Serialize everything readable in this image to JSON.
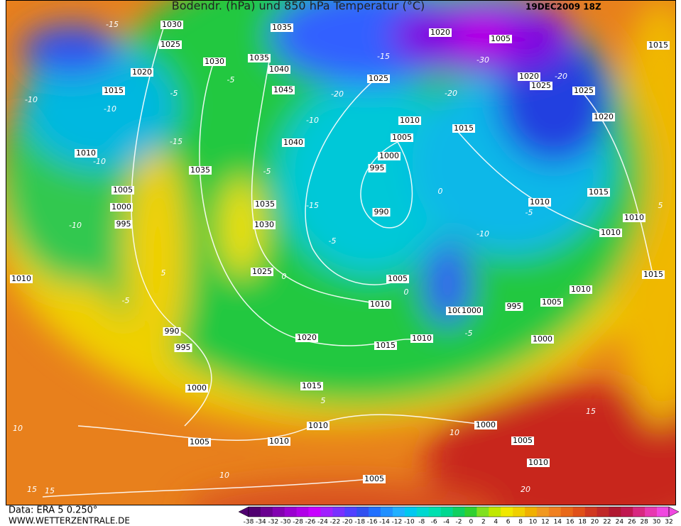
{
  "header": {
    "title": "Bodendr. (hPa) und 850 hPa Temperatur (°C)",
    "date": "19DEC2009 18Z"
  },
  "map": {
    "isobar_labels": [
      "1030",
      "1035",
      "1025",
      "1035",
      "1030",
      "1020",
      "1040",
      "1015",
      "1045",
      "1025",
      "1020",
      "1005",
      "1020",
      "1025",
      "1025",
      "1015",
      "1020",
      "1010",
      "1005",
      "1015",
      "1040",
      "1000",
      "1010",
      "1035",
      "995",
      "1005",
      "1015",
      "1000",
      "1035",
      "990",
      "1010",
      "995",
      "1030",
      "1010",
      "1010",
      "1010",
      "1025",
      "1005",
      "1015",
      "1010",
      "1010",
      "1005",
      "1000",
      "995",
      "1005",
      "990",
      "1020",
      "1010",
      "1000",
      "995",
      "1015",
      "1000",
      "1015",
      "1010",
      "1000",
      "1005",
      "1010",
      "1005",
      "1010",
      "1005"
    ],
    "temperature_labels": [
      "-15",
      "-10",
      "-5",
      "-10",
      "-5",
      "-20",
      "-20",
      "-15",
      "-10",
      "-5",
      "-15",
      "-10",
      "-10",
      "-5",
      "0",
      "-10",
      "-5",
      "5",
      "0",
      "-5",
      "0",
      "-5",
      "5",
      "10",
      "15",
      "10",
      "15",
      "10",
      "15",
      "20",
      "5",
      "-30",
      "-15",
      "-20"
    ]
  },
  "footer": {
    "data_source": "Data: ERA 5 0.250°",
    "website": "WWW.WETTERZENTRALE.DE"
  },
  "colorbar": {
    "labels": [
      "-38",
      "-34",
      "-32",
      "-30",
      "-28",
      "-26",
      "-24",
      "-22",
      "-20",
      "-18",
      "-16",
      "-14",
      "-12",
      "-10",
      "-8",
      "-6",
      "-4",
      "-2",
      "0",
      "2",
      "4",
      "6",
      "8",
      "10",
      "12",
      "14",
      "16",
      "18",
      "20",
      "22",
      "24",
      "26",
      "28",
      "30",
      "32"
    ],
    "colors": [
      "#500070",
      "#6a0090",
      "#8200b0",
      "#9a00d0",
      "#b000e8",
      "#c800ff",
      "#a020ff",
      "#7830ff",
      "#5040ff",
      "#3050f0",
      "#2070ff",
      "#2090ff",
      "#20b0ff",
      "#00c8f0",
      "#00d8d0",
      "#00e0b0",
      "#00d890",
      "#10d060",
      "#30d030",
      "#80e020",
      "#c0e800",
      "#f0e800",
      "#f0d000",
      "#f0b000",
      "#f09820",
      "#f08020",
      "#e86818",
      "#e05018",
      "#d03820",
      "#c02828",
      "#b01830",
      "#c01850",
      "#d82880",
      "#e838b0",
      "#f048e0"
    ]
  }
}
